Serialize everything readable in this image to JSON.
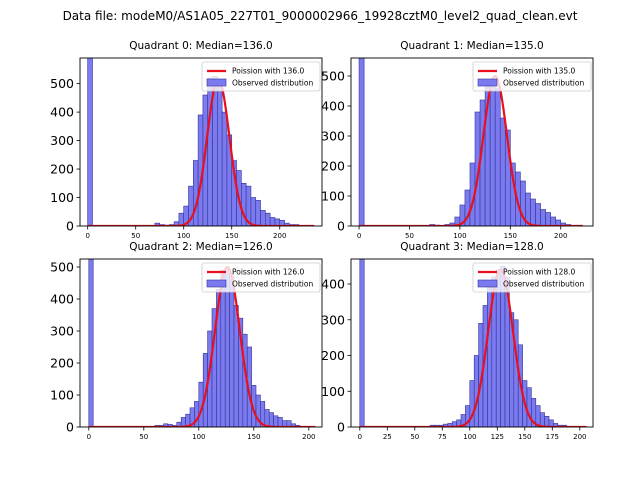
{
  "figure": {
    "suptitle": "Data file: modeM0/AS1A05_227T01_9000002966_19928cztM0_level2_quad_clean.evt"
  },
  "chart_data": [
    {
      "type": "bar",
      "title": "Quadrant 0: Median=136.0",
      "median": 136.0,
      "xlim": [
        -8,
        244
      ],
      "ylim": [
        0,
        590
      ],
      "xticks": [
        0,
        50,
        100,
        150,
        200
      ],
      "yticks": [
        0,
        100,
        200,
        300,
        400,
        500
      ],
      "bin_width": 5,
      "zero_bin_value": 590,
      "hist": [
        [
          70,
          10
        ],
        [
          75,
          5
        ],
        [
          80,
          3
        ],
        [
          85,
          5
        ],
        [
          90,
          15
        ],
        [
          95,
          45
        ],
        [
          100,
          70
        ],
        [
          105,
          140
        ],
        [
          110,
          230
        ],
        [
          115,
          390
        ],
        [
          120,
          460
        ],
        [
          125,
          520
        ],
        [
          130,
          525
        ],
        [
          135,
          490
        ],
        [
          140,
          400
        ],
        [
          145,
          320
        ],
        [
          150,
          230
        ],
        [
          155,
          195
        ],
        [
          160,
          150
        ],
        [
          165,
          140
        ],
        [
          170,
          100
        ],
        [
          175,
          90
        ],
        [
          180,
          55
        ],
        [
          185,
          45
        ],
        [
          190,
          30
        ],
        [
          195,
          25
        ],
        [
          200,
          20
        ],
        [
          205,
          10
        ],
        [
          210,
          5
        ],
        [
          215,
          5
        ]
      ],
      "curve": {
        "mean": 136.0,
        "sigma": 11.66,
        "peak": 515
      },
      "curve_xmax": 236,
      "legend": {
        "line": "Poission with 136.0",
        "patch": "Observed distribution"
      },
      "colors": {
        "bar": "#7b7bef",
        "edge": "#333399",
        "curve": "#e8101c"
      }
    },
    {
      "type": "bar",
      "title": "Quadrant 1: Median=135.0",
      "median": 135.0,
      "xlim": [
        -8,
        232
      ],
      "ylim": [
        0,
        560
      ],
      "xticks": [
        0,
        50,
        100,
        150,
        200
      ],
      "yticks": [
        0,
        100,
        200,
        300,
        400,
        500
      ],
      "bin_width": 5,
      "zero_bin_value": 560,
      "hist": [
        [
          70,
          5
        ],
        [
          75,
          3
        ],
        [
          80,
          2
        ],
        [
          85,
          5
        ],
        [
          90,
          10
        ],
        [
          95,
          30
        ],
        [
          100,
          70
        ],
        [
          105,
          120
        ],
        [
          110,
          210
        ],
        [
          115,
          380
        ],
        [
          120,
          420
        ],
        [
          125,
          470
        ],
        [
          130,
          470
        ],
        [
          135,
          460
        ],
        [
          140,
          360
        ],
        [
          145,
          320
        ],
        [
          150,
          210
        ],
        [
          155,
          180
        ],
        [
          160,
          150
        ],
        [
          165,
          110
        ],
        [
          170,
          90
        ],
        [
          175,
          75
        ],
        [
          180,
          55
        ],
        [
          185,
          45
        ],
        [
          190,
          30
        ],
        [
          195,
          20
        ],
        [
          200,
          10
        ],
        [
          205,
          5
        ]
      ],
      "curve": {
        "mean": 135.0,
        "sigma": 11.62,
        "peak": 500
      },
      "curve_xmax": 222,
      "legend": {
        "line": "Poission with 135.0",
        "patch": "Observed distribution"
      },
      "colors": {
        "bar": "#7b7bef",
        "edge": "#333399",
        "curve": "#e8101c"
      }
    },
    {
      "type": "bar",
      "title": "Quadrant 2: Median=126.0",
      "median": 126.0,
      "xlim": [
        -8,
        212
      ],
      "ylim": [
        0,
        525
      ],
      "xticks": [
        0,
        50,
        100,
        150,
        200
      ],
      "yticks": [
        0,
        100,
        200,
        300,
        400,
        500
      ],
      "bin_width": 4,
      "zero_bin_value": 525,
      "hist": [
        [
          60,
          5
        ],
        [
          64,
          5
        ],
        [
          68,
          10
        ],
        [
          72,
          8
        ],
        [
          76,
          5
        ],
        [
          80,
          15
        ],
        [
          84,
          30
        ],
        [
          88,
          40
        ],
        [
          92,
          60
        ],
        [
          96,
          80
        ],
        [
          100,
          140
        ],
        [
          104,
          230
        ],
        [
          108,
          300
        ],
        [
          112,
          370
        ],
        [
          116,
          430
        ],
        [
          120,
          490
        ],
        [
          124,
          500
        ],
        [
          128,
          470
        ],
        [
          132,
          380
        ],
        [
          136,
          340
        ],
        [
          140,
          290
        ],
        [
          144,
          250
        ],
        [
          148,
          130
        ],
        [
          152,
          100
        ],
        [
          156,
          80
        ],
        [
          160,
          55
        ],
        [
          164,
          45
        ],
        [
          168,
          35
        ],
        [
          172,
          30
        ],
        [
          176,
          20
        ],
        [
          180,
          20
        ],
        [
          184,
          10
        ],
        [
          188,
          5
        ]
      ],
      "curve": {
        "mean": 126.0,
        "sigma": 11.22,
        "peak": 500
      },
      "curve_xmax": 206,
      "legend": {
        "line": "Poission with 126.0",
        "patch": "Observed distribution"
      },
      "colors": {
        "bar": "#7b7bef",
        "edge": "#333399",
        "curve": "#e8101c"
      }
    },
    {
      "type": "bar",
      "title": "Quadrant 3: Median=128.0",
      "median": 128.0,
      "xlim": [
        -8,
        212
      ],
      "ylim": [
        0,
        470
      ],
      "xticks": [
        0,
        25,
        50,
        75,
        100,
        125,
        150,
        175,
        200
      ],
      "yticks": [
        0,
        100,
        200,
        300,
        400
      ],
      "bin_width": 4,
      "zero_bin_value": 470,
      "hist": [
        [
          64,
          5
        ],
        [
          68,
          5
        ],
        [
          72,
          5
        ],
        [
          76,
          8
        ],
        [
          80,
          10
        ],
        [
          84,
          15
        ],
        [
          88,
          20
        ],
        [
          92,
          35
        ],
        [
          96,
          60
        ],
        [
          100,
          130
        ],
        [
          104,
          200
        ],
        [
          108,
          290
        ],
        [
          112,
          340
        ],
        [
          116,
          390
        ],
        [
          120,
          420
        ],
        [
          124,
          440
        ],
        [
          128,
          450
        ],
        [
          132,
          420
        ],
        [
          136,
          320
        ],
        [
          140,
          300
        ],
        [
          144,
          230
        ],
        [
          148,
          130
        ],
        [
          152,
          110
        ],
        [
          156,
          80
        ],
        [
          160,
          60
        ],
        [
          164,
          40
        ],
        [
          168,
          30
        ],
        [
          172,
          20
        ],
        [
          176,
          10
        ],
        [
          180,
          5
        ],
        [
          184,
          5
        ]
      ],
      "curve": {
        "mean": 128.0,
        "sigma": 11.31,
        "peak": 440
      },
      "curve_xmax": 206,
      "legend": {
        "line": "Poission with 128.0",
        "patch": "Observed distribution"
      },
      "colors": {
        "bar": "#7b7bef",
        "edge": "#333399",
        "curve": "#e8101c"
      }
    }
  ]
}
